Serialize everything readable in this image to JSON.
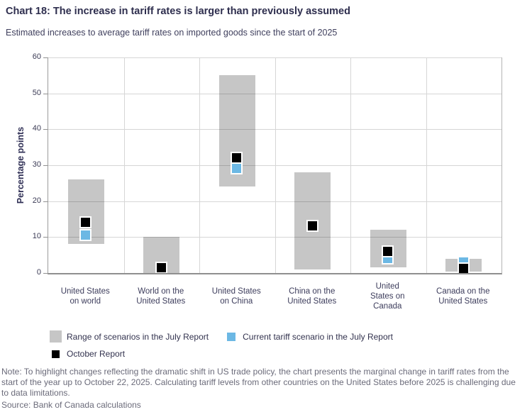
{
  "title": "Chart 18: The increase in tariff rates is larger than previously assumed",
  "subtitle": "Estimated increases to average tariff rates on imported goods since the start of 2025",
  "chart_data": {
    "type": "bar",
    "subtype": "floating-range-with-point-markers",
    "title": "Chart 18: The increase in tariff rates is larger than previously assumed",
    "xlabel": "",
    "ylabel": "Percentage points",
    "ylim": [
      0,
      60
    ],
    "yticks": [
      0,
      10,
      20,
      30,
      40,
      50,
      60
    ],
    "grid": true,
    "legend_position": "bottom",
    "categories": [
      "United States\non world",
      "World on the\nUnited States",
      "United States\non China",
      "China on the\nUnited States",
      "United\nStates on\nCanada",
      "Canada on the\nUnited States"
    ],
    "series": [
      {
        "name": "Range of scenarios in the July Report",
        "type": "range",
        "color": "#c6c6c6",
        "low": [
          8,
          0,
          24,
          1,
          1.5,
          0.3
        ],
        "high": [
          26,
          10,
          55,
          28,
          12,
          4
        ]
      },
      {
        "name": "Current tariff scenario in the July Report",
        "type": "square-marker",
        "color": "#6cb8e4",
        "values": [
          10.5,
          null,
          29,
          null,
          4,
          3
        ]
      },
      {
        "name": "October Report",
        "type": "square-marker",
        "color": "#000000",
        "values": [
          14,
          1.3,
          32,
          13,
          6,
          1.2
        ]
      }
    ]
  },
  "note": "Note: To highlight changes reflecting the dramatic shift in US trade policy, the chart presents the marginal change in tariff rates from the start of the year up to October 22, 2025. Calculating tariff levels from other countries on the United States before 2025 is challenging due to data limitations.",
  "source": "Source: Bank of Canada calculations",
  "colors": {
    "bar_gray": "#c6c6c6",
    "marker_blue": "#6cb8e4",
    "marker_black": "#000000",
    "title_navy": "#2e2e4e",
    "note_gray": "#6b6b7a",
    "gridline": "#d6d6d6",
    "axis": "#8f8f8f"
  }
}
